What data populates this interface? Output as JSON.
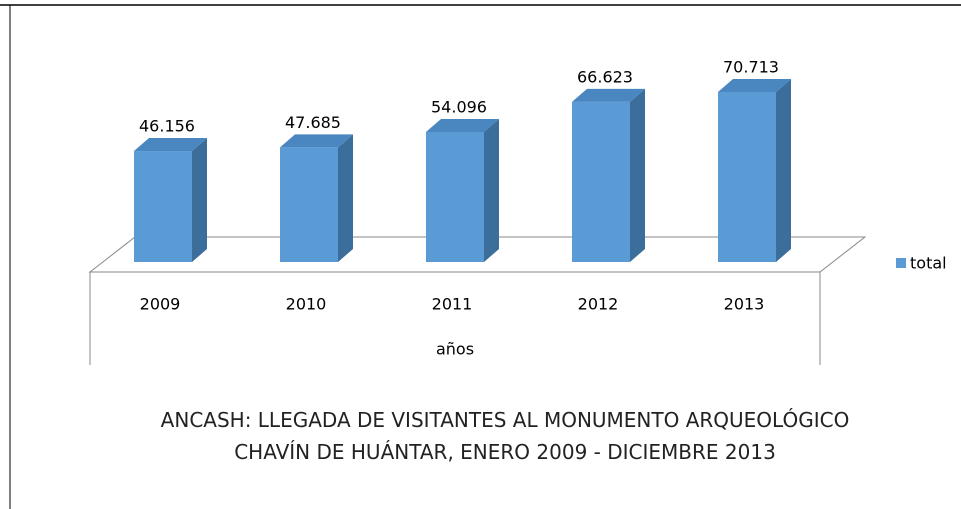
{
  "chart_data": {
    "type": "bar3d",
    "title": "ANCASH: LLEGADA DE VISITANTES AL MONUMENTO ARQUEOLÓGICO CHAVÍN DE HUÁNTAR, ENERO 2009 - DICIEMBRE 2013",
    "x_label": "años",
    "categories": [
      "2009",
      "2010",
      "2011",
      "2012",
      "2013"
    ],
    "series": [
      {
        "name": "total",
        "color": "#5b9bd5",
        "values": [
          46156,
          47685,
          54096,
          66623,
          70713
        ],
        "value_labels": [
          "46.156",
          "47.685",
          "54.096",
          "66.623",
          "70.713"
        ]
      }
    ],
    "legend": "right"
  }
}
